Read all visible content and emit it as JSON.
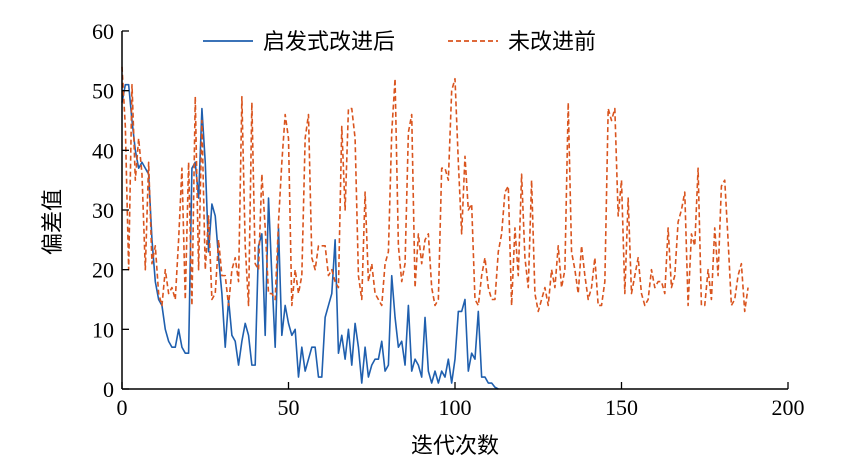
{
  "chart_data": {
    "type": "line",
    "title": "",
    "xlabel": "迭代次数",
    "ylabel": "偏差值",
    "xlim": [
      0,
      200
    ],
    "ylim": [
      0,
      60
    ],
    "xticks": [
      0,
      50,
      100,
      150,
      200
    ],
    "yticks": [
      0,
      10,
      20,
      30,
      40,
      50,
      60
    ],
    "grid": false,
    "legend_position": "top",
    "series": [
      {
        "name": "启发式改进后",
        "color": "#1f5fae",
        "style": "solid",
        "points": [
          [
            0,
            48
          ],
          [
            1,
            51
          ],
          [
            2,
            51
          ],
          [
            3,
            45
          ],
          [
            4,
            40
          ],
          [
            5,
            37
          ],
          [
            6,
            38
          ],
          [
            7,
            37
          ],
          [
            8,
            36
          ],
          [
            9,
            25
          ],
          [
            10,
            18
          ],
          [
            11,
            15
          ],
          [
            12,
            14
          ],
          [
            13,
            10
          ],
          [
            14,
            8
          ],
          [
            15,
            7
          ],
          [
            16,
            7
          ],
          [
            17,
            10
          ],
          [
            18,
            7
          ],
          [
            19,
            6
          ],
          [
            20,
            6
          ],
          [
            21,
            37
          ],
          [
            22,
            38
          ],
          [
            23,
            32
          ],
          [
            24,
            47
          ],
          [
            25,
            38
          ],
          [
            26,
            23
          ],
          [
            27,
            31
          ],
          [
            28,
            29
          ],
          [
            29,
            22
          ],
          [
            30,
            16
          ],
          [
            31,
            7
          ],
          [
            32,
            15
          ],
          [
            33,
            9
          ],
          [
            34,
            8
          ],
          [
            35,
            4
          ],
          [
            36,
            8
          ],
          [
            37,
            11
          ],
          [
            38,
            9
          ],
          [
            39,
            4
          ],
          [
            40,
            4
          ],
          [
            41,
            24
          ],
          [
            42,
            26
          ],
          [
            43,
            9
          ],
          [
            44,
            32
          ],
          [
            45,
            19
          ],
          [
            46,
            7
          ],
          [
            47,
            27
          ],
          [
            48,
            9
          ],
          [
            49,
            14
          ],
          [
            50,
            11
          ],
          [
            51,
            9
          ],
          [
            52,
            10
          ],
          [
            53,
            2
          ],
          [
            54,
            7
          ],
          [
            55,
            3
          ],
          [
            56,
            5
          ],
          [
            57,
            7
          ],
          [
            58,
            7
          ],
          [
            59,
            2
          ],
          [
            60,
            2
          ],
          [
            61,
            12
          ],
          [
            62,
            14
          ],
          [
            63,
            16
          ],
          [
            64,
            25
          ],
          [
            65,
            6
          ],
          [
            66,
            9
          ],
          [
            67,
            5
          ],
          [
            68,
            10
          ],
          [
            69,
            4
          ],
          [
            70,
            11
          ],
          [
            71,
            7
          ],
          [
            72,
            1
          ],
          [
            73,
            7
          ],
          [
            74,
            2
          ],
          [
            75,
            4
          ],
          [
            76,
            5
          ],
          [
            77,
            5
          ],
          [
            78,
            8
          ],
          [
            79,
            3
          ],
          [
            80,
            4
          ],
          [
            81,
            19
          ],
          [
            82,
            12
          ],
          [
            83,
            7
          ],
          [
            84,
            8
          ],
          [
            85,
            4
          ],
          [
            86,
            14
          ],
          [
            87,
            3
          ],
          [
            88,
            5
          ],
          [
            89,
            4
          ],
          [
            90,
            2
          ],
          [
            91,
            12
          ],
          [
            92,
            3
          ],
          [
            93,
            1
          ],
          [
            94,
            3
          ],
          [
            95,
            1
          ],
          [
            96,
            3
          ],
          [
            97,
            2
          ],
          [
            98,
            5
          ],
          [
            99,
            1
          ],
          [
            100,
            5
          ],
          [
            101,
            13
          ],
          [
            102,
            13
          ],
          [
            103,
            15
          ],
          [
            104,
            3
          ],
          [
            105,
            6
          ],
          [
            106,
            5
          ],
          [
            107,
            13
          ],
          [
            108,
            2
          ],
          [
            109,
            2
          ],
          [
            110,
            1
          ],
          [
            111,
            1
          ],
          [
            112,
            0.3
          ],
          [
            113,
            0
          ]
        ]
      },
      {
        "name": "未改进前",
        "color": "#d9541e",
        "style": "dashed",
        "points": [
          [
            0,
            54
          ],
          [
            1,
            44
          ],
          [
            2,
            20
          ],
          [
            3,
            51
          ],
          [
            4,
            35
          ],
          [
            5,
            42
          ],
          [
            6,
            36
          ],
          [
            7,
            20
          ],
          [
            8,
            38
          ],
          [
            9,
            21
          ],
          [
            10,
            24
          ],
          [
            11,
            16
          ],
          [
            12,
            14
          ],
          [
            13,
            20
          ],
          [
            14,
            16
          ],
          [
            15,
            17
          ],
          [
            16,
            15
          ],
          [
            17,
            25
          ],
          [
            18,
            37
          ],
          [
            19,
            15
          ],
          [
            20,
            38
          ],
          [
            21,
            14
          ],
          [
            22,
            49
          ],
          [
            23,
            20
          ],
          [
            24,
            45
          ],
          [
            25,
            20
          ],
          [
            26,
            29
          ],
          [
            27,
            15
          ],
          [
            28,
            16
          ],
          [
            29,
            25
          ],
          [
            30,
            19
          ],
          [
            31,
            19
          ],
          [
            32,
            14
          ],
          [
            33,
            20
          ],
          [
            34,
            22
          ],
          [
            35,
            18
          ],
          [
            36,
            49
          ],
          [
            37,
            24
          ],
          [
            38,
            14
          ],
          [
            39,
            48
          ],
          [
            40,
            21
          ],
          [
            41,
            20
          ],
          [
            42,
            36
          ],
          [
            43,
            27
          ],
          [
            44,
            16
          ],
          [
            45,
            16
          ],
          [
            46,
            15
          ],
          [
            47,
            28
          ],
          [
            48,
            38
          ],
          [
            49,
            46
          ],
          [
            50,
            42
          ],
          [
            51,
            14
          ],
          [
            52,
            20
          ],
          [
            53,
            16
          ],
          [
            54,
            19
          ],
          [
            55,
            42
          ],
          [
            56,
            46
          ],
          [
            57,
            22
          ],
          [
            58,
            20
          ],
          [
            59,
            24
          ],
          [
            60,
            24
          ],
          [
            61,
            24
          ],
          [
            62,
            19
          ],
          [
            63,
            20
          ],
          [
            64,
            18
          ],
          [
            65,
            17
          ],
          [
            66,
            44
          ],
          [
            67,
            30
          ],
          [
            68,
            47
          ],
          [
            69,
            47
          ],
          [
            70,
            42
          ],
          [
            71,
            19
          ],
          [
            72,
            15
          ],
          [
            73,
            33
          ],
          [
            74,
            18
          ],
          [
            75,
            21
          ],
          [
            76,
            16
          ],
          [
            77,
            15
          ],
          [
            78,
            14
          ],
          [
            79,
            21
          ],
          [
            80,
            23
          ],
          [
            81,
            43
          ],
          [
            82,
            52
          ],
          [
            83,
            24
          ],
          [
            84,
            18
          ],
          [
            85,
            21
          ],
          [
            86,
            43
          ],
          [
            87,
            46
          ],
          [
            88,
            17
          ],
          [
            89,
            26
          ],
          [
            90,
            21
          ],
          [
            91,
            25
          ],
          [
            92,
            26
          ],
          [
            93,
            17
          ],
          [
            94,
            14
          ],
          [
            95,
            15
          ],
          [
            96,
            37
          ],
          [
            97,
            37
          ],
          [
            98,
            35
          ],
          [
            99,
            50
          ],
          [
            100,
            52
          ],
          [
            101,
            38
          ],
          [
            102,
            26
          ],
          [
            103,
            39
          ],
          [
            104,
            30
          ],
          [
            105,
            31
          ],
          [
            106,
            15
          ],
          [
            107,
            14
          ],
          [
            108,
            19
          ],
          [
            109,
            22
          ],
          [
            110,
            17
          ],
          [
            111,
            15
          ],
          [
            112,
            15
          ],
          [
            113,
            23
          ],
          [
            114,
            26
          ],
          [
            115,
            33
          ],
          [
            116,
            34
          ],
          [
            117,
            14
          ],
          [
            118,
            27
          ],
          [
            119,
            19
          ],
          [
            120,
            36
          ],
          [
            121,
            22
          ],
          [
            122,
            17
          ],
          [
            123,
            35
          ],
          [
            124,
            16
          ],
          [
            125,
            13
          ],
          [
            126,
            15
          ],
          [
            127,
            17
          ],
          [
            128,
            14
          ],
          [
            129,
            20
          ],
          [
            130,
            17
          ],
          [
            131,
            24
          ],
          [
            132,
            17
          ],
          [
            133,
            20
          ],
          [
            134,
            48
          ],
          [
            135,
            23
          ],
          [
            136,
            20
          ],
          [
            137,
            16
          ],
          [
            138,
            24
          ],
          [
            139,
            19
          ],
          [
            140,
            15
          ],
          [
            141,
            17
          ],
          [
            142,
            22
          ],
          [
            143,
            14
          ],
          [
            144,
            14
          ],
          [
            145,
            18
          ],
          [
            146,
            47
          ],
          [
            147,
            45
          ],
          [
            148,
            47
          ],
          [
            149,
            29
          ],
          [
            150,
            35
          ],
          [
            151,
            16
          ],
          [
            152,
            32
          ],
          [
            153,
            16
          ],
          [
            154,
            19
          ],
          [
            155,
            22
          ],
          [
            156,
            16
          ],
          [
            157,
            14
          ],
          [
            158,
            15
          ],
          [
            159,
            20
          ],
          [
            160,
            17
          ],
          [
            161,
            18
          ],
          [
            162,
            18
          ],
          [
            163,
            16
          ],
          [
            164,
            27
          ],
          [
            165,
            17
          ],
          [
            166,
            19
          ],
          [
            167,
            28
          ],
          [
            168,
            30
          ],
          [
            169,
            33
          ],
          [
            170,
            14
          ],
          [
            171,
            26
          ],
          [
            172,
            24
          ],
          [
            173,
            37
          ],
          [
            174,
            14
          ],
          [
            175,
            14
          ],
          [
            176,
            20
          ],
          [
            177,
            15
          ],
          [
            178,
            27
          ],
          [
            179,
            19
          ],
          [
            180,
            34
          ],
          [
            181,
            35
          ],
          [
            182,
            25
          ],
          [
            183,
            14
          ],
          [
            184,
            15
          ],
          [
            185,
            19
          ],
          [
            186,
            21
          ],
          [
            187,
            13
          ],
          [
            188,
            17
          ]
        ]
      }
    ]
  }
}
